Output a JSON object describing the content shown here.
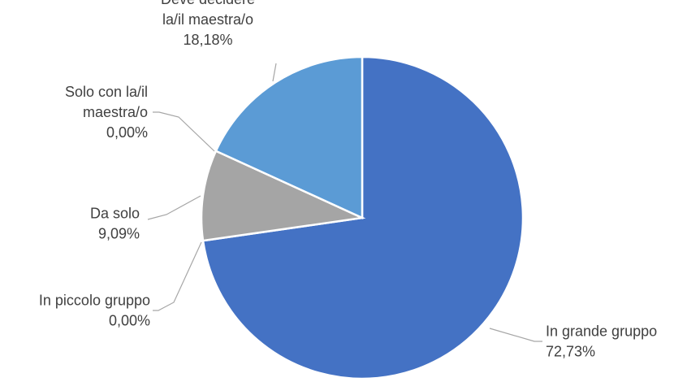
{
  "chart_data": {
    "type": "pie",
    "title": "",
    "start_angle_deg": 0,
    "direction": "clockwise",
    "slices": [
      {
        "label_lines": [
          "In grande gruppo"
        ],
        "value": "72,73%",
        "percent": 72.73,
        "color": "#4472c4"
      },
      {
        "label_lines": [
          "In piccolo gruppo"
        ],
        "value": "0,00%",
        "percent": 0.0,
        "color": "#ed7d31"
      },
      {
        "label_lines": [
          "Da solo"
        ],
        "value": "9,09%",
        "percent": 9.09,
        "color": "#a5a5a5"
      },
      {
        "label_lines": [
          "Solo con la/il",
          "maestra/o"
        ],
        "value": "0,00%",
        "percent": 0.0,
        "color": "#ffc000"
      },
      {
        "label_lines": [
          "Deve decidere",
          "la/il maestra/o"
        ],
        "value": "18,18%",
        "percent": 18.18,
        "color": "#5b9bd5"
      }
    ]
  }
}
